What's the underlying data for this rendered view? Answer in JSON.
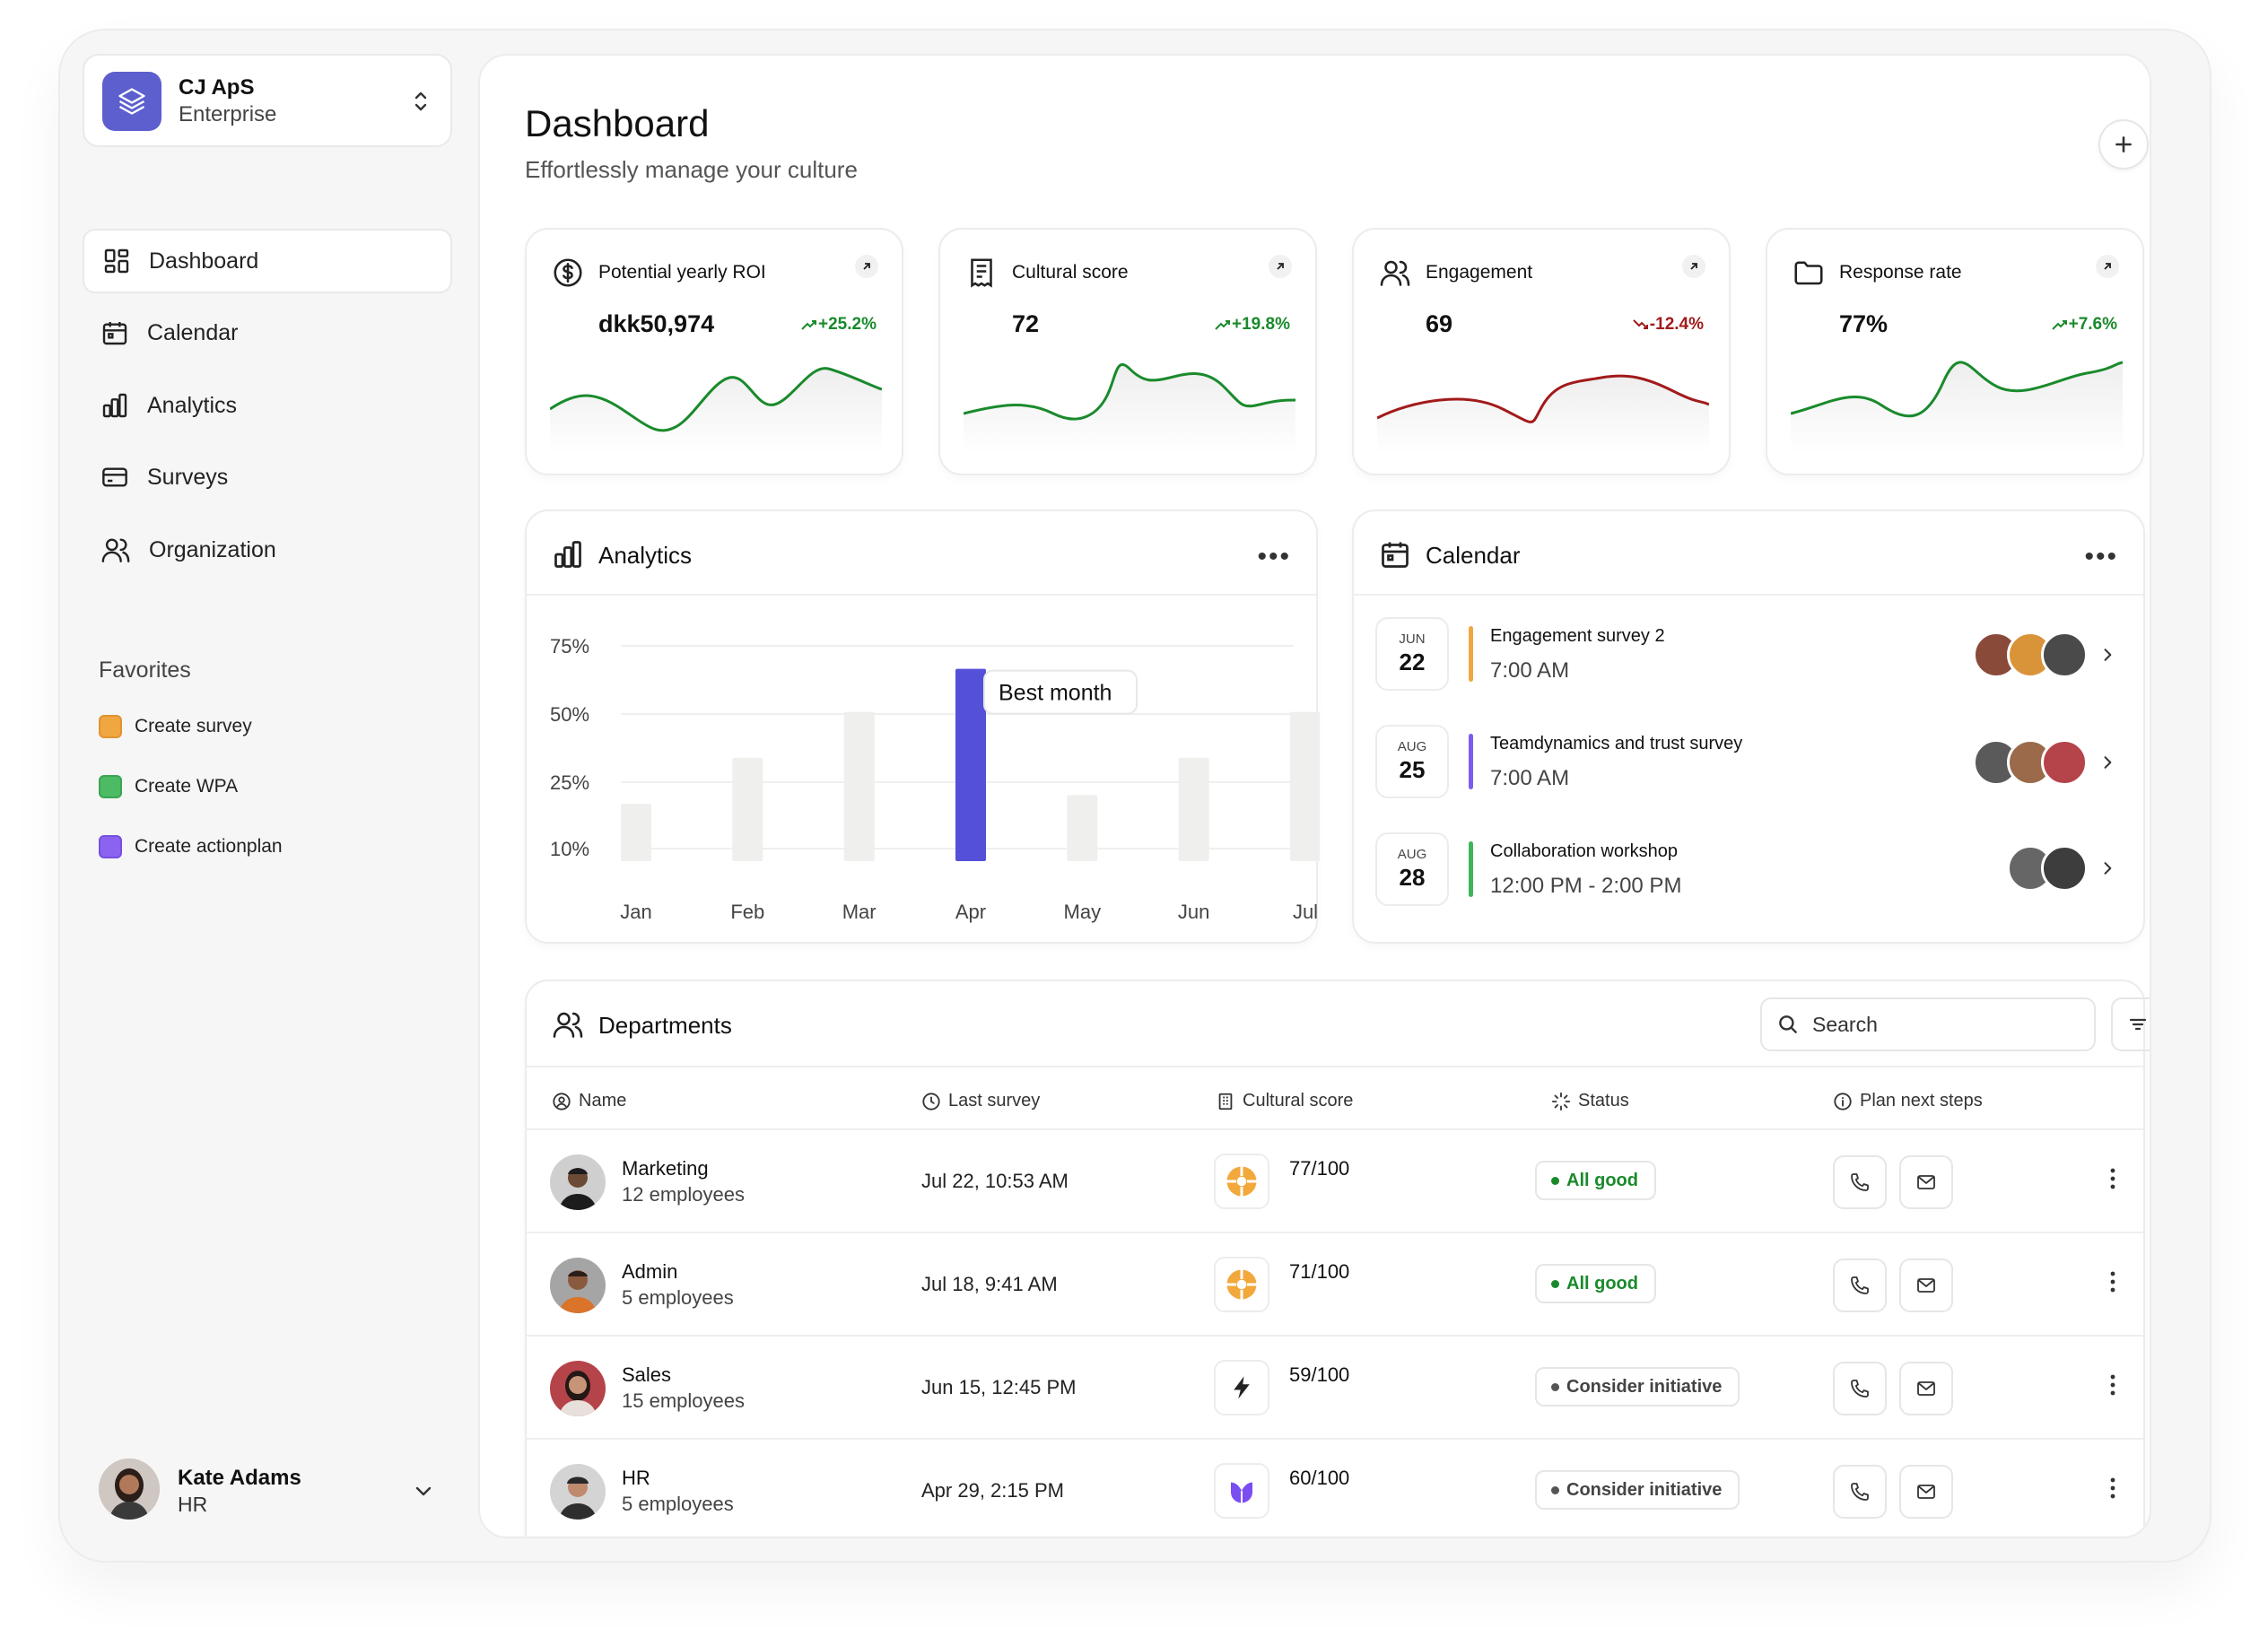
{
  "org": {
    "name": "CJ ApS",
    "plan": "Enterprise"
  },
  "nav": [
    {
      "label": "Dashboard",
      "icon": "dashboard-icon",
      "active": true
    },
    {
      "label": "Calendar",
      "icon": "calendar-icon"
    },
    {
      "label": "Analytics",
      "icon": "bar-chart-icon"
    },
    {
      "label": "Surveys",
      "icon": "card-icon"
    },
    {
      "label": "Organization",
      "icon": "users-icon"
    }
  ],
  "favorites": {
    "title": "Favorites",
    "items": [
      {
        "label": "Create survey",
        "color": "#f0a742"
      },
      {
        "label": "Create WPA",
        "color": "#4dbb64"
      },
      {
        "label": "Create actionplan",
        "color": "#8b63f0"
      }
    ]
  },
  "user": {
    "name": "Kate Adams",
    "role": "HR"
  },
  "header": {
    "title": "Dashboard",
    "subtitle": "Effortlessly manage your culture"
  },
  "kpis": [
    {
      "title": "Potential yearly ROI",
      "value": "dkk50,974",
      "delta": "+25.2%",
      "trend": "up",
      "icon": "dollar-circle-icon"
    },
    {
      "title": "Cultural score",
      "value": "72",
      "delta": "+19.8%",
      "trend": "up",
      "icon": "receipt-icon"
    },
    {
      "title": "Engagement",
      "value": "69",
      "delta": "-12.4%",
      "trend": "down",
      "icon": "users-icon"
    },
    {
      "title": "Response rate",
      "value": "77%",
      "delta": "+7.6%",
      "trend": "up",
      "icon": "folder-icon"
    }
  ],
  "analytics": {
    "title": "Analytics",
    "tooltip": "Best month"
  },
  "chart_data": {
    "type": "bar",
    "categories": [
      "Jan",
      "Feb",
      "Mar",
      "Apr",
      "May",
      "Jun",
      "Jul"
    ],
    "values": [
      20,
      36,
      52,
      67,
      23,
      36,
      52
    ],
    "yticks": [
      "75%",
      "50%",
      "25%",
      "10%"
    ],
    "highlight": "Apr",
    "colors": {
      "bar": "#efefed",
      "highlight": "#5550d8"
    }
  },
  "calendar": {
    "title": "Calendar",
    "events": [
      {
        "month": "JUN",
        "day": "22",
        "name": "Engagement survey 2",
        "time": "7:00 AM",
        "color": "#f0a742"
      },
      {
        "month": "AUG",
        "day": "25",
        "name": "Teamdynamics and trust survey",
        "time": "7:00 AM",
        "color": "#7c5cf0"
      },
      {
        "month": "AUG",
        "day": "28",
        "name": "Collaboration workshop",
        "time": "12:00 PM - 2:00 PM",
        "color": "#3cb55a"
      }
    ]
  },
  "departments": {
    "title": "Departments",
    "search_placeholder": "Search",
    "columns": [
      "Name",
      "Last survey",
      "Cultural score",
      "Status",
      "Plan next steps"
    ],
    "rows": [
      {
        "name": "Marketing",
        "employees": "12 employees",
        "last_survey": "Jul 22, 10:53 AM",
        "score": "77/100",
        "status": "All good",
        "status_kind": "good"
      },
      {
        "name": "Admin",
        "employees": "5 employees",
        "last_survey": "Jul 18, 9:41 AM",
        "score": "71/100",
        "status": "All good",
        "status_kind": "good"
      },
      {
        "name": "Sales",
        "employees": "15 employees",
        "last_survey": "Jun 15, 12:45 PM",
        "score": "59/100",
        "status": "Consider initiative",
        "status_kind": "neutral"
      },
      {
        "name": "HR",
        "employees": "5 employees",
        "last_survey": "Apr 29, 2:15 PM",
        "score": "60/100",
        "status": "Consider initiative",
        "status_kind": "neutral"
      }
    ]
  }
}
